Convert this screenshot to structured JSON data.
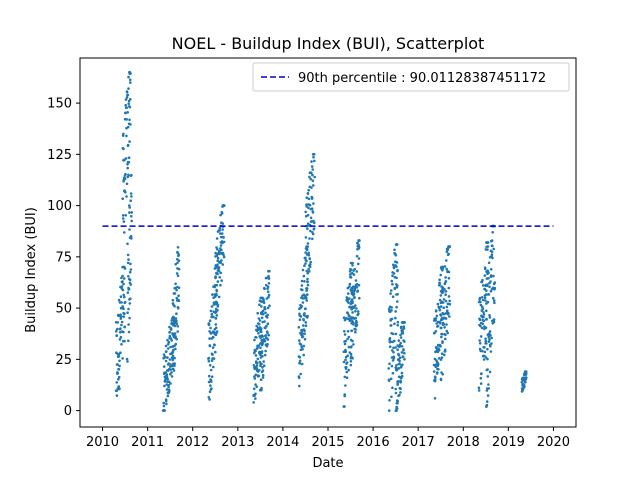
{
  "chart_data": {
    "type": "scatter",
    "title": "NOEL - Buildup Index (BUI), Scatterplot",
    "xlabel": "Date",
    "ylabel": "Buildup Index (BUI)",
    "xlim": [
      2009.5,
      2020.5
    ],
    "ylim": [
      -8,
      172
    ],
    "x_ticks": [
      2010,
      2011,
      2012,
      2013,
      2014,
      2015,
      2016,
      2017,
      2018,
      2019,
      2020
    ],
    "y_ticks": [
      0,
      25,
      50,
      75,
      100,
      125,
      150
    ],
    "grid": false,
    "legend_position": "top-right",
    "reference_line": {
      "label": "90th percentile : 90.01128387451172",
      "value": 90.01128387451172,
      "x_start": 2010.0,
      "x_end": 2020.0,
      "style": "dashed",
      "color": "#0000cc"
    },
    "series": [
      {
        "color": "#1f77b4",
        "clusters": [
          {
            "x_start": 2010.3,
            "x_end": 2010.5,
            "y_min": 2,
            "y_max": 70
          },
          {
            "x_start": 2010.45,
            "x_end": 2010.62,
            "y_min": 85,
            "y_max": 165
          },
          {
            "x_start": 2010.55,
            "x_end": 2010.65,
            "y_min": 24,
            "y_max": 115
          },
          {
            "x_start": 2011.35,
            "x_end": 2011.6,
            "y_min": 0,
            "y_max": 45
          },
          {
            "x_start": 2011.55,
            "x_end": 2011.7,
            "y_min": 15,
            "y_max": 80
          },
          {
            "x_start": 2012.35,
            "x_end": 2012.55,
            "y_min": 5,
            "y_max": 70
          },
          {
            "x_start": 2012.5,
            "x_end": 2012.7,
            "y_min": 45,
            "y_max": 100
          },
          {
            "x_start": 2013.35,
            "x_end": 2013.55,
            "y_min": 4,
            "y_max": 55
          },
          {
            "x_start": 2013.5,
            "x_end": 2013.7,
            "y_min": 10,
            "y_max": 68
          },
          {
            "x_start": 2014.35,
            "x_end": 2014.55,
            "y_min": 12,
            "y_max": 80
          },
          {
            "x_start": 2014.5,
            "x_end": 2014.7,
            "y_min": 55,
            "y_max": 125
          },
          {
            "x_start": 2015.35,
            "x_end": 2015.55,
            "y_min": 2,
            "y_max": 72
          },
          {
            "x_start": 2015.5,
            "x_end": 2015.7,
            "y_min": 20,
            "y_max": 83
          },
          {
            "x_start": 2016.35,
            "x_end": 2016.55,
            "y_min": 0,
            "y_max": 81
          },
          {
            "x_start": 2016.5,
            "x_end": 2016.7,
            "y_min": 0,
            "y_max": 43
          },
          {
            "x_start": 2017.35,
            "x_end": 2017.55,
            "y_min": 6,
            "y_max": 70
          },
          {
            "x_start": 2017.5,
            "x_end": 2017.7,
            "y_min": 15,
            "y_max": 80
          },
          {
            "x_start": 2018.35,
            "x_end": 2018.55,
            "y_min": 8,
            "y_max": 82
          },
          {
            "x_start": 2018.5,
            "x_end": 2018.7,
            "y_min": 2,
            "y_max": 90
          },
          {
            "x_start": 2019.3,
            "x_end": 2019.4,
            "y_min": 9,
            "y_max": 19
          }
        ]
      }
    ]
  }
}
